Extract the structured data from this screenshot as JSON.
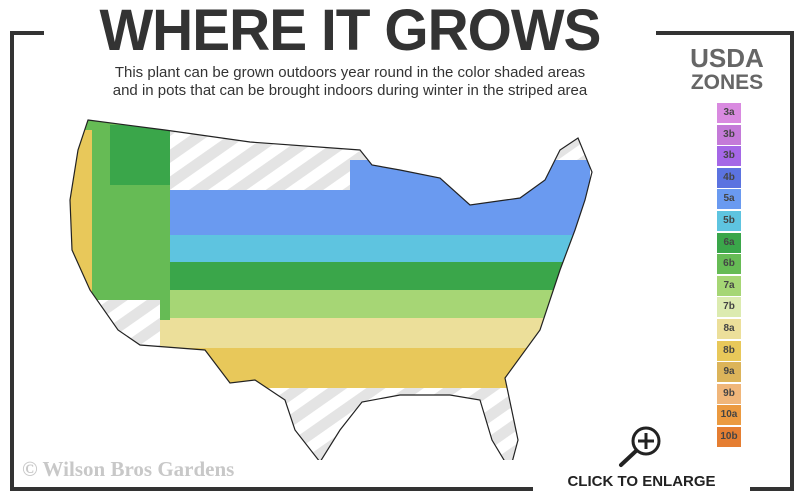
{
  "header": {
    "title": "WHERE IT GROWS",
    "subtitle_line1": "This plant can be grown outdoors year round in the color shaded areas",
    "subtitle_line2": "and in pots that can be brought indoors during winter in the striped area"
  },
  "legend": {
    "title_line1": "USDA",
    "title_line2": "ZONES",
    "zones": [
      {
        "label": "3a",
        "color": "#d98ae0"
      },
      {
        "label": "3b",
        "color": "#c47ad8"
      },
      {
        "label": "3b",
        "color": "#a567e6"
      },
      {
        "label": "4b",
        "color": "#5b73e0"
      },
      {
        "label": "5a",
        "color": "#6a9af0"
      },
      {
        "label": "5b",
        "color": "#5ec4e0"
      },
      {
        "label": "6a",
        "color": "#3aa64a"
      },
      {
        "label": "6b",
        "color": "#66bb55"
      },
      {
        "label": "7a",
        "color": "#a6d675"
      },
      {
        "label": "7b",
        "color": "#dcebb0"
      },
      {
        "label": "8a",
        "color": "#ecdf9a"
      },
      {
        "label": "8b",
        "color": "#e8c85a"
      },
      {
        "label": "9a",
        "color": "#dcb45a"
      },
      {
        "label": "9b",
        "color": "#f0b67a"
      },
      {
        "label": "10a",
        "color": "#eb9a40"
      },
      {
        "label": "10b",
        "color": "#e57e32"
      }
    ]
  },
  "watermark": "© Wilson Bros Gardens",
  "enlarge": {
    "label": "CLICK TO ENLARGE",
    "icon": "zoom-in-icon"
  },
  "colors": {
    "frame": "#333333",
    "stripe": "#e4e4e4"
  }
}
